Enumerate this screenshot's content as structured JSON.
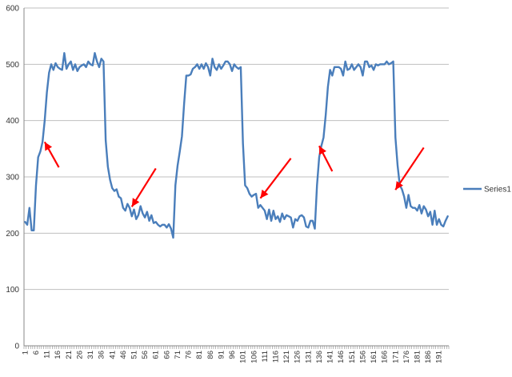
{
  "chart_data": {
    "type": "line",
    "title": "",
    "xlabel": "",
    "ylabel": "",
    "ylim": [
      0,
      600
    ],
    "yticks": [
      0,
      100,
      200,
      300,
      400,
      500,
      600
    ],
    "grid": "horizontal major gridlines",
    "legend_position": "right",
    "xtick_labels": [
      "1",
      "6",
      "11",
      "16",
      "21",
      "26",
      "31",
      "36",
      "41",
      "46",
      "51",
      "56",
      "61",
      "66",
      "71",
      "76",
      "81",
      "86",
      "91",
      "96",
      "101",
      "106",
      "111",
      "116",
      "121",
      "126",
      "131",
      "136",
      "141",
      "146",
      "151",
      "156",
      "161",
      "166",
      "171",
      "176",
      "181",
      "186",
      "191"
    ],
    "colors": {
      "series": "#4a7ebb",
      "arrow": "#ff0000",
      "grid": "#bfbfbf",
      "axis": "#888888"
    },
    "series": [
      {
        "name": "Series1",
        "values": [
          220,
          215,
          245,
          205,
          205,
          285,
          335,
          345,
          362,
          400,
          450,
          485,
          500,
          490,
          502,
          495,
          492,
          490,
          520,
          492,
          500,
          505,
          490,
          500,
          488,
          495,
          498,
          500,
          495,
          505,
          500,
          498,
          520,
          505,
          495,
          510,
          505,
          365,
          318,
          295,
          280,
          275,
          278,
          265,
          262,
          245,
          240,
          252,
          245,
          230,
          242,
          225,
          232,
          248,
          235,
          228,
          238,
          222,
          232,
          218,
          220,
          215,
          212,
          215,
          215,
          210,
          216,
          208,
          192,
          285,
          320,
          345,
          372,
          430,
          480,
          480,
          482,
          492,
          495,
          500,
          492,
          500,
          492,
          502,
          495,
          480,
          510,
          495,
          490,
          500,
          492,
          498,
          505,
          505,
          500,
          488,
          500,
          495,
          492,
          495,
          360,
          285,
          280,
          270,
          265,
          268,
          270,
          245,
          250,
          245,
          240,
          225,
          242,
          222,
          240,
          225,
          230,
          220,
          235,
          225,
          232,
          230,
          228,
          210,
          225,
          222,
          230,
          232,
          228,
          212,
          210,
          222,
          222,
          208,
          285,
          335,
          355,
          370,
          410,
          460,
          490,
          480,
          495,
          495,
          495,
          492,
          480,
          505,
          490,
          492,
          500,
          490,
          495,
          500,
          495,
          480,
          505,
          505,
          495,
          498,
          490,
          500,
          498,
          500,
          500,
          500,
          505,
          500,
          502,
          505,
          370,
          320,
          285,
          278,
          265,
          245,
          268,
          248,
          245,
          245,
          240,
          250,
          235,
          248,
          242,
          230,
          238,
          215,
          240,
          215,
          225,
          215,
          212,
          222,
          230
        ]
      }
    ],
    "annotations": [
      {
        "type": "arrow",
        "from": [
          16.5,
          317
        ],
        "to": [
          10,
          362
        ]
      },
      {
        "type": "arrow",
        "from": [
          61,
          315
        ],
        "to": [
          50,
          247
        ]
      },
      {
        "type": "arrow",
        "from": [
          123,
          333
        ],
        "to": [
          109,
          262
        ]
      },
      {
        "type": "arrow",
        "from": [
          142,
          310
        ],
        "to": [
          136,
          355
        ]
      },
      {
        "type": "arrow",
        "from": [
          184,
          352
        ],
        "to": [
          171,
          277
        ]
      }
    ]
  }
}
